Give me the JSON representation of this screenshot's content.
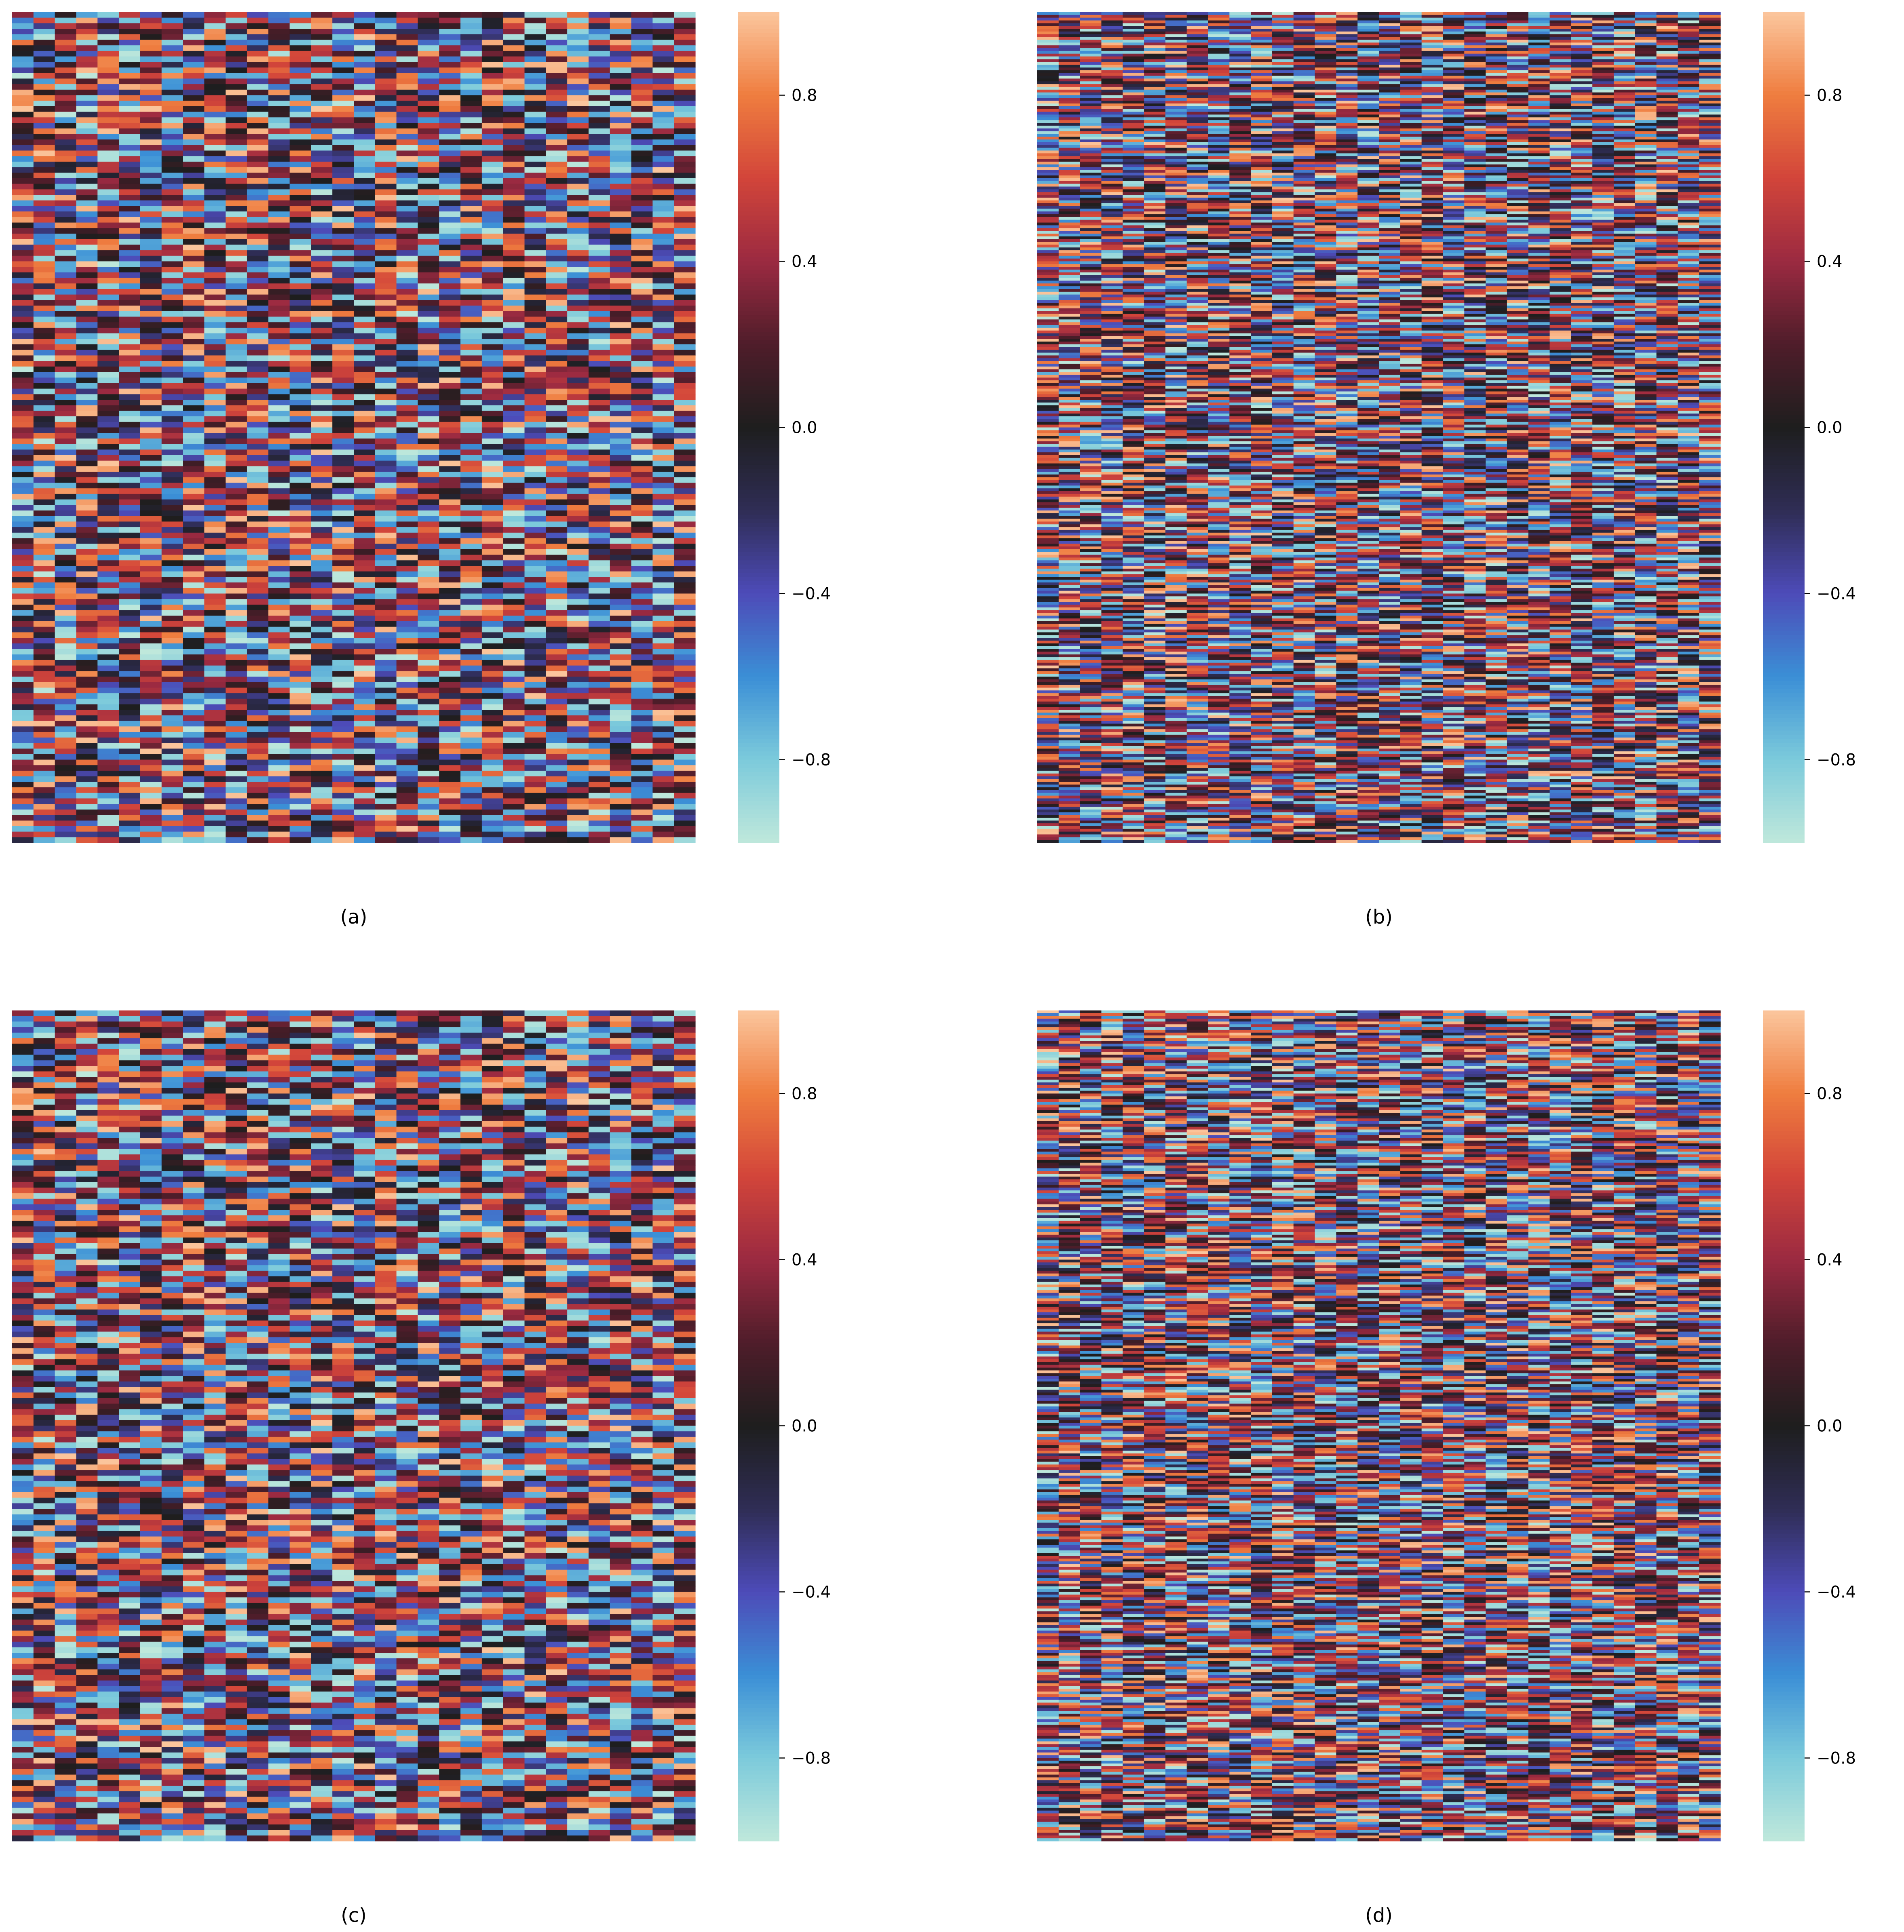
{
  "figure": {
    "panel_count": 4
  },
  "chart_data": [
    {
      "type": "heatmap",
      "caption": "(a)",
      "title": "",
      "xlabel": "",
      "ylabel": "",
      "n_columns": 32,
      "n_rows": 150,
      "value_range": [
        -1.0,
        1.0
      ],
      "colorbar": {
        "ticks": [
          0.8,
          0.4,
          0.0,
          -0.4,
          -0.8
        ],
        "tick_labels": [
          "0.8",
          "0.4",
          "0.0",
          "−0.4",
          "−0.8"
        ]
      },
      "seed": 17
    },
    {
      "type": "heatmap",
      "caption": "(b)",
      "title": "",
      "xlabel": "",
      "ylabel": "",
      "n_columns": 32,
      "n_rows": 300,
      "value_range": [
        -1.0,
        1.0
      ],
      "colorbar": {
        "ticks": [
          0.8,
          0.4,
          0.0,
          -0.4,
          -0.8
        ],
        "tick_labels": [
          "0.8",
          "0.4",
          "0.0",
          "−0.4",
          "−0.8"
        ]
      },
      "seed": 29
    },
    {
      "type": "heatmap",
      "caption": "(c)",
      "title": "",
      "xlabel": "",
      "ylabel": "",
      "n_columns": 32,
      "n_rows": 150,
      "value_range": [
        -1.0,
        1.0
      ],
      "colorbar": {
        "ticks": [
          0.8,
          0.4,
          0.0,
          -0.4,
          -0.8
        ],
        "tick_labels": [
          "0.8",
          "0.4",
          "0.0",
          "−0.4",
          "−0.8"
        ]
      },
      "seed": 17
    },
    {
      "type": "heatmap",
      "caption": "(d)",
      "title": "",
      "xlabel": "",
      "ylabel": "",
      "n_columns": 32,
      "n_rows": 300,
      "value_range": [
        -1.0,
        1.0
      ],
      "colorbar": {
        "ticks": [
          0.8,
          0.4,
          0.0,
          -0.4,
          -0.8
        ],
        "tick_labels": [
          "0.8",
          "0.4",
          "0.0",
          "−0.4",
          "−0.8"
        ]
      },
      "seed": 43
    }
  ],
  "colormap": {
    "name": "icefire",
    "stops": [
      [
        "-1.0",
        "#bfe8db"
      ],
      [
        "-0.8",
        "#7ccadb"
      ],
      [
        "-0.6",
        "#3b8fd6"
      ],
      [
        "-0.4",
        "#4d4bb8"
      ],
      [
        "-0.2",
        "#2f2d55"
      ],
      [
        "0.0",
        "#1e1e1e"
      ],
      [
        "0.2",
        "#4f1d2a"
      ],
      [
        "0.4",
        "#9b2a41"
      ],
      [
        "0.6",
        "#d2453a"
      ],
      [
        "0.8",
        "#ef7d3f"
      ],
      [
        "1.0",
        "#fbc69d"
      ]
    ]
  }
}
